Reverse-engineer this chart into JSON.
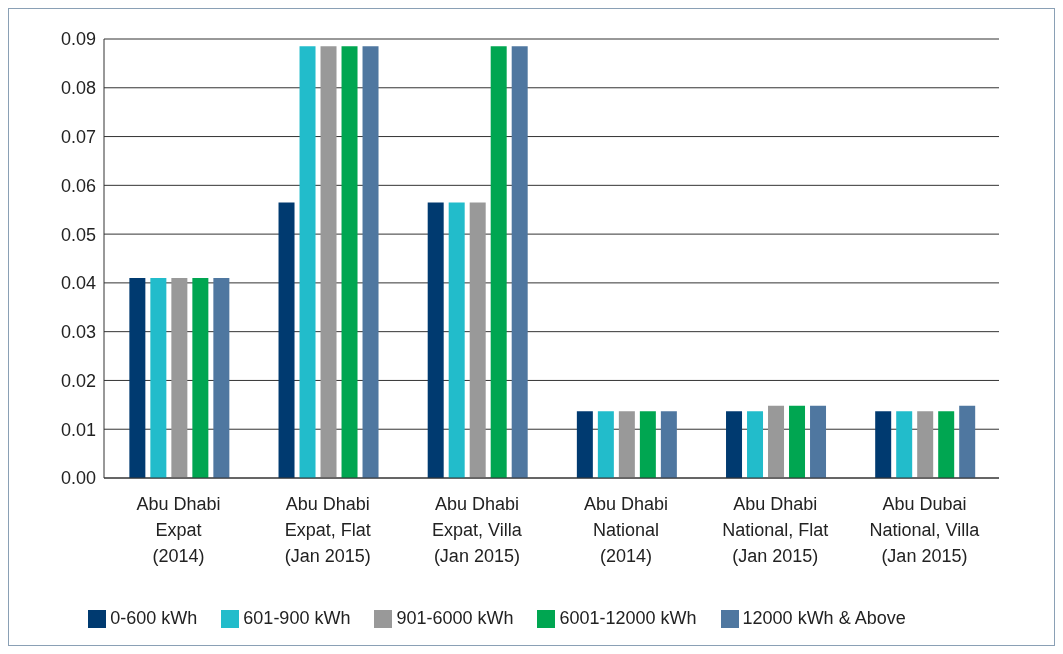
{
  "chart_data": {
    "type": "bar",
    "categories": [
      "Abu Dhabi Expat (2014)",
      "Abu Dhabi Expat, Flat (Jan 2015)",
      "Abu Dhabi Expat, Villa (Jan 2015)",
      "Abu Dhabi National (2014)",
      "Abu Dhabi National, Flat (Jan 2015)",
      "Abu Dubai National, Villa (Jan 2015)"
    ],
    "series": [
      {
        "name": "0-600 kWh",
        "color": "#003a70",
        "values": [
          0.041,
          0.0565,
          0.0565,
          0.0137,
          0.0137,
          0.0137
        ]
      },
      {
        "name": "601-900 kWh",
        "color": "#22bccb",
        "values": [
          0.041,
          0.0885,
          0.0565,
          0.0137,
          0.0137,
          0.0137
        ]
      },
      {
        "name": "901-6000 kWh",
        "color": "#999999",
        "values": [
          0.041,
          0.0885,
          0.0565,
          0.0137,
          0.0148,
          0.0137
        ]
      },
      {
        "name": "6001-12000 kWh",
        "color": "#00a651",
        "values": [
          0.041,
          0.0885,
          0.0885,
          0.0137,
          0.0148,
          0.0137
        ]
      },
      {
        "name": "12000 kWh & Above",
        "color": "#4f77a0",
        "values": [
          0.041,
          0.0885,
          0.0885,
          0.0137,
          0.0148,
          0.0148
        ]
      }
    ],
    "ylim": [
      0,
      0.09
    ],
    "yticks": [
      {
        "value": 0,
        "label": "0.00"
      },
      0.01,
      0.02,
      0.03,
      0.04,
      0.05,
      0.06,
      0.07,
      0.08,
      0.09
    ],
    "grid": "y",
    "legend": "bottom"
  }
}
